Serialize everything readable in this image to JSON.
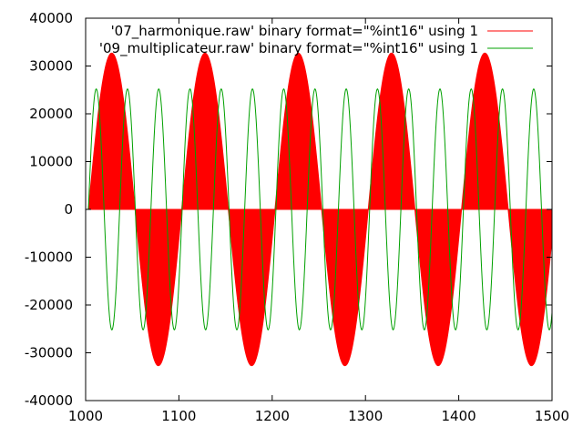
{
  "chart_data": {
    "type": "line",
    "xlim": [
      1000,
      1500
    ],
    "ylim": [
      -40000,
      40000
    ],
    "x_ticks": [
      1000,
      1100,
      1200,
      1300,
      1400,
      1500
    ],
    "y_ticks": [
      40000,
      30000,
      20000,
      10000,
      0,
      -10000,
      -20000,
      -30000,
      -40000
    ],
    "x_tick_labels": [
      "1000",
      "1100",
      "1200",
      "1300",
      "1400",
      "1500"
    ],
    "y_tick_labels": [
      "40000",
      "30000",
      "20000",
      "10000",
      "0",
      "-10000",
      "-20000",
      "-30000",
      "-40000"
    ],
    "grid": false,
    "legend_position": "top-right",
    "series": [
      {
        "name": "'07_harmonique.raw' binary format=\"%int16\" using 1",
        "color": "#ff0000",
        "style": "filled-to-zero",
        "amplitude": 32700,
        "period": 100,
        "phase_start": 1003
      },
      {
        "name": "'09_multiplicateur.raw' binary format=\"%int16\" using 1",
        "color": "#00a000",
        "style": "line",
        "amplitude": 25200,
        "period": 33.5,
        "phase_start": 1003
      }
    ]
  }
}
